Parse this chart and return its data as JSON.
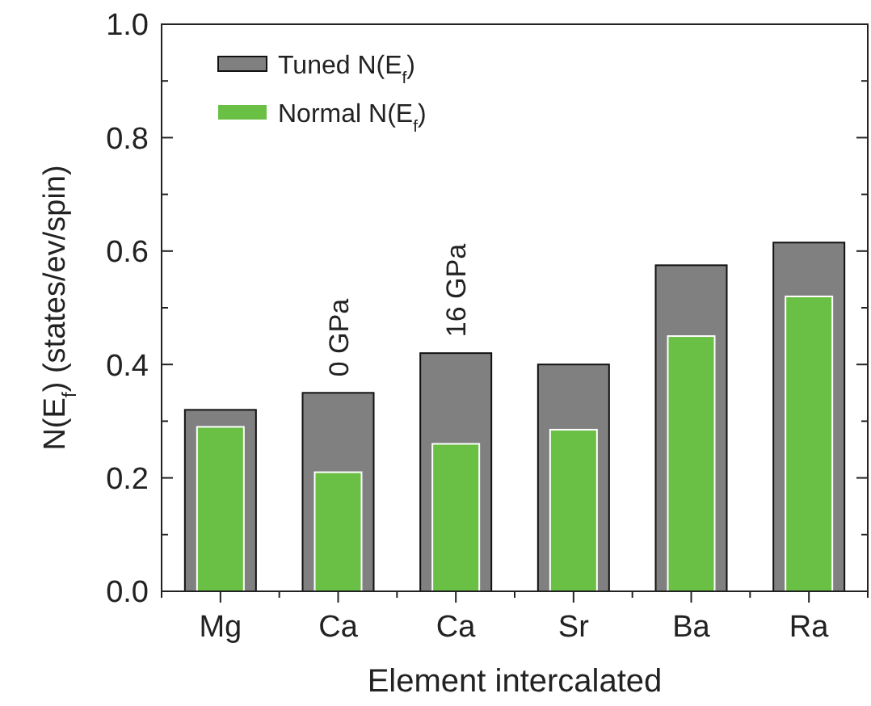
{
  "chart_data": {
    "type": "bar",
    "xlabel": "Element intercalated",
    "ylabel": "N(E$_{f}$)    (states/ev/spin)",
    "categories": [
      "Mg",
      "Ca",
      "Ca",
      "Sr",
      "Ba",
      "Ra"
    ],
    "series": [
      {
        "name": "Tuned    N(E$_{f}$)",
        "color": "#808080",
        "values": [
          0.32,
          0.35,
          0.42,
          0.4,
          0.575,
          0.615
        ]
      },
      {
        "name": "Normal  N(E$_{f}$)",
        "color": "#6abf45",
        "values": [
          0.29,
          0.21,
          0.26,
          0.285,
          0.45,
          0.52
        ]
      }
    ],
    "ylim": [
      0,
      1.0
    ],
    "yticks": [
      "0.0",
      {
        "value": 0.1,
        "label": null
      },
      {
        "value": 0.2,
        "label": "0.2"
      },
      {
        "value": 0.3,
        "label": null
      },
      {
        "value": 0.4,
        "label": "0.4"
      },
      {
        "value": 0.5,
        "label": null
      },
      {
        "value": 0.6,
        "label": "0.6"
      },
      {
        "value": 0.7,
        "label": null
      },
      {
        "value": 0.8,
        "label": "0.8"
      },
      {
        "value": 0.9,
        "label": null
      },
      {
        "value": 1.0,
        "label": "1.0"
      }
    ],
    "annotations": [
      "0 GPa",
      "16 GPa"
    ],
    "legend": "top left",
    "grid": false
  }
}
